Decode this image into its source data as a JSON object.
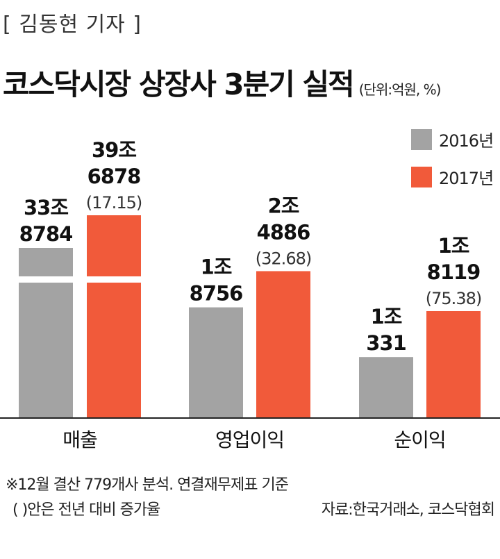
{
  "byline": "[ 김동현 기자 ]",
  "title": "코스닥시장 상장사 3분기 실적",
  "unit": "(단위:억원, %)",
  "colors": {
    "y2016": "#a3a3a3",
    "y2017": "#f15a3a"
  },
  "chart_data": {
    "type": "bar",
    "categories": [
      "매출",
      "영업이익",
      "순이익"
    ],
    "series": [
      {
        "name": "2016년",
        "values": [
          338784,
          18756,
          10331
        ],
        "labels": [
          [
            "33조",
            "8784"
          ],
          [
            "1조",
            "8756"
          ],
          [
            "1조",
            "331"
          ]
        ]
      },
      {
        "name": "2017년",
        "values": [
          396878,
          24886,
          18119
        ],
        "labels": [
          [
            "39조",
            "6878"
          ],
          [
            "2조",
            "4886"
          ],
          [
            "1조",
            "8119"
          ]
        ],
        "growth": [
          "(17.15)",
          "(32.68)",
          "(75.38)"
        ]
      }
    ],
    "axis_break": "y axis broken on 매출 bars",
    "legend": "top-right"
  },
  "footer": {
    "note1": "※12월 결산 779개사 분석. 연결재무제표 기준",
    "note2": "( )안은 전년 대비 증가율",
    "source": "자료:한국거래소, 코스닥협회"
  }
}
